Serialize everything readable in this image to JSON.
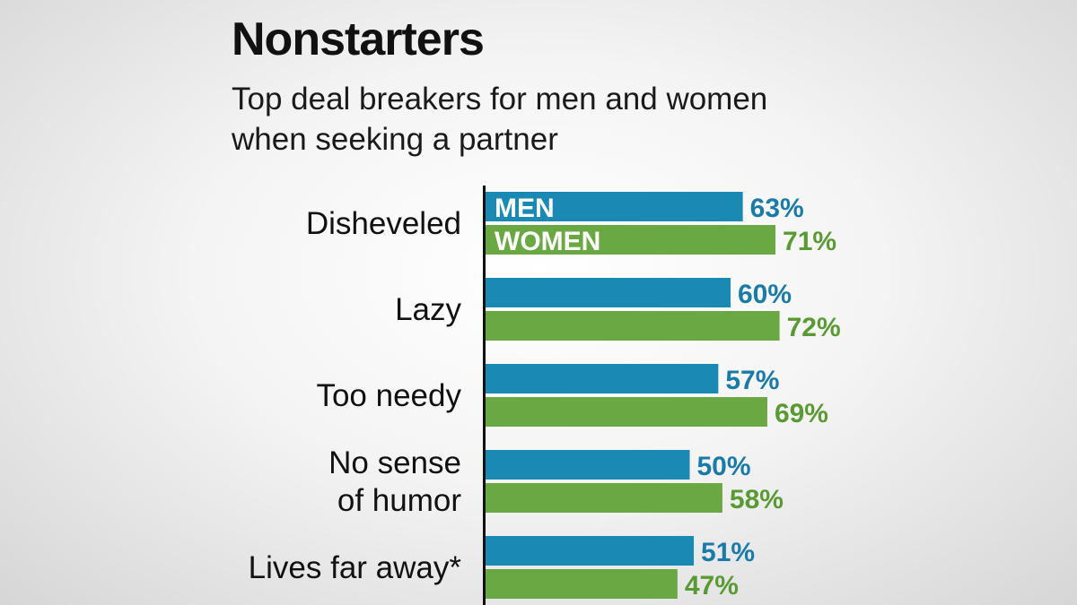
{
  "title": "Nonstarters",
  "subtitle": "Top deal breakers for men and women when seeking a partner",
  "colors": {
    "men": "#1a8ab5",
    "women": "#6aa843",
    "men_text": "#1a7aa8",
    "women_text": "#5a9a35",
    "axis": "#111111"
  },
  "chart_data": {
    "type": "bar",
    "orientation": "horizontal",
    "categories": [
      [
        "Disheveled"
      ],
      [
        "Lazy"
      ],
      [
        "Too needy"
      ],
      [
        "No sense",
        "of humor"
      ],
      [
        "Lives far away*"
      ]
    ],
    "series": [
      {
        "name": "MEN",
        "values": [
          63,
          60,
          57,
          50,
          51
        ],
        "labels": [
          "63%",
          "60%",
          "57%",
          "50%",
          "51%"
        ]
      },
      {
        "name": "WOMEN",
        "values": [
          71,
          72,
          69,
          58,
          47
        ],
        "labels": [
          "71%",
          "72%",
          "69%",
          "58%",
          "47%"
        ]
      }
    ],
    "unit": "%",
    "xlim": [
      0,
      100
    ],
    "grid": false,
    "legend": "inside-first-bars"
  }
}
